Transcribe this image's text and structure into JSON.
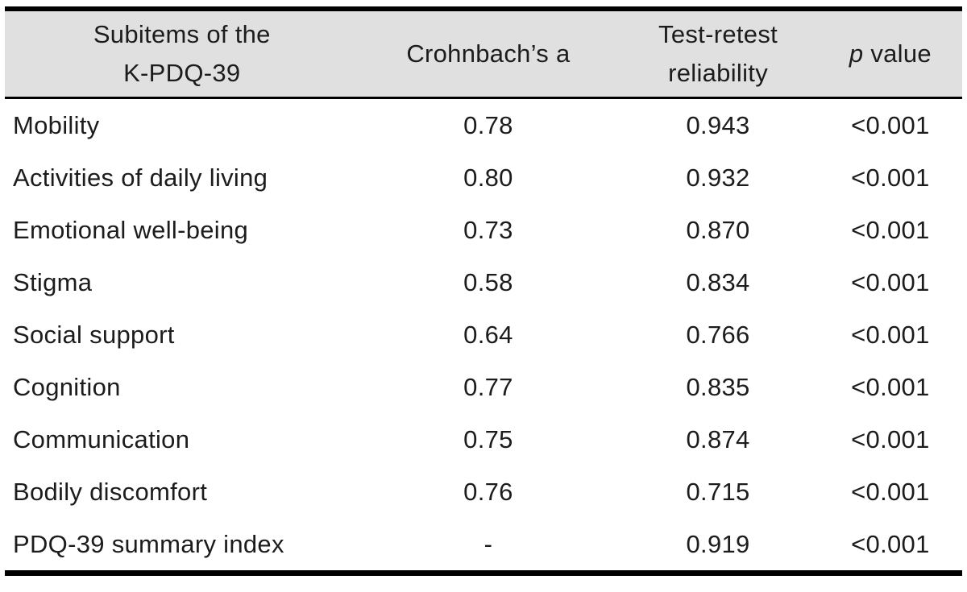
{
  "colors": {
    "header_bg": "#e0e0e0",
    "text": "#1c1c1c",
    "rule": "#000000"
  },
  "table": {
    "col_headers": {
      "subitems_line1": "Subitems of the",
      "subitems_line2": "K-PDQ-39",
      "cronbach": "Crohnbach’s a",
      "test_retest_line1": "Test-retest",
      "test_retest_line2": "reliability",
      "p_italic": "p",
      "p_rest": "value"
    },
    "rows": [
      {
        "cells": [
          "Mobility",
          "0.78",
          "0.943",
          "<0.001"
        ]
      },
      {
        "cells": [
          "Activities of daily living",
          "0.80",
          "0.932",
          "<0.001"
        ]
      },
      {
        "cells": [
          "Emotional well-being",
          "0.73",
          "0.870",
          "<0.001"
        ]
      },
      {
        "cells": [
          "Stigma",
          "0.58",
          "0.834",
          "<0.001"
        ]
      },
      {
        "cells": [
          "Social support",
          "0.64",
          "0.766",
          "<0.001"
        ]
      },
      {
        "cells": [
          "Cognition",
          "0.77",
          "0.835",
          "<0.001"
        ]
      },
      {
        "cells": [
          "Communication",
          "0.75",
          "0.874",
          "<0.001"
        ]
      },
      {
        "cells": [
          "Bodily discomfort",
          "0.76",
          "0.715",
          "<0.001"
        ]
      },
      {
        "cells": [
          "PDQ-39 summary index",
          "-",
          "0.919",
          "<0.001"
        ]
      }
    ]
  }
}
